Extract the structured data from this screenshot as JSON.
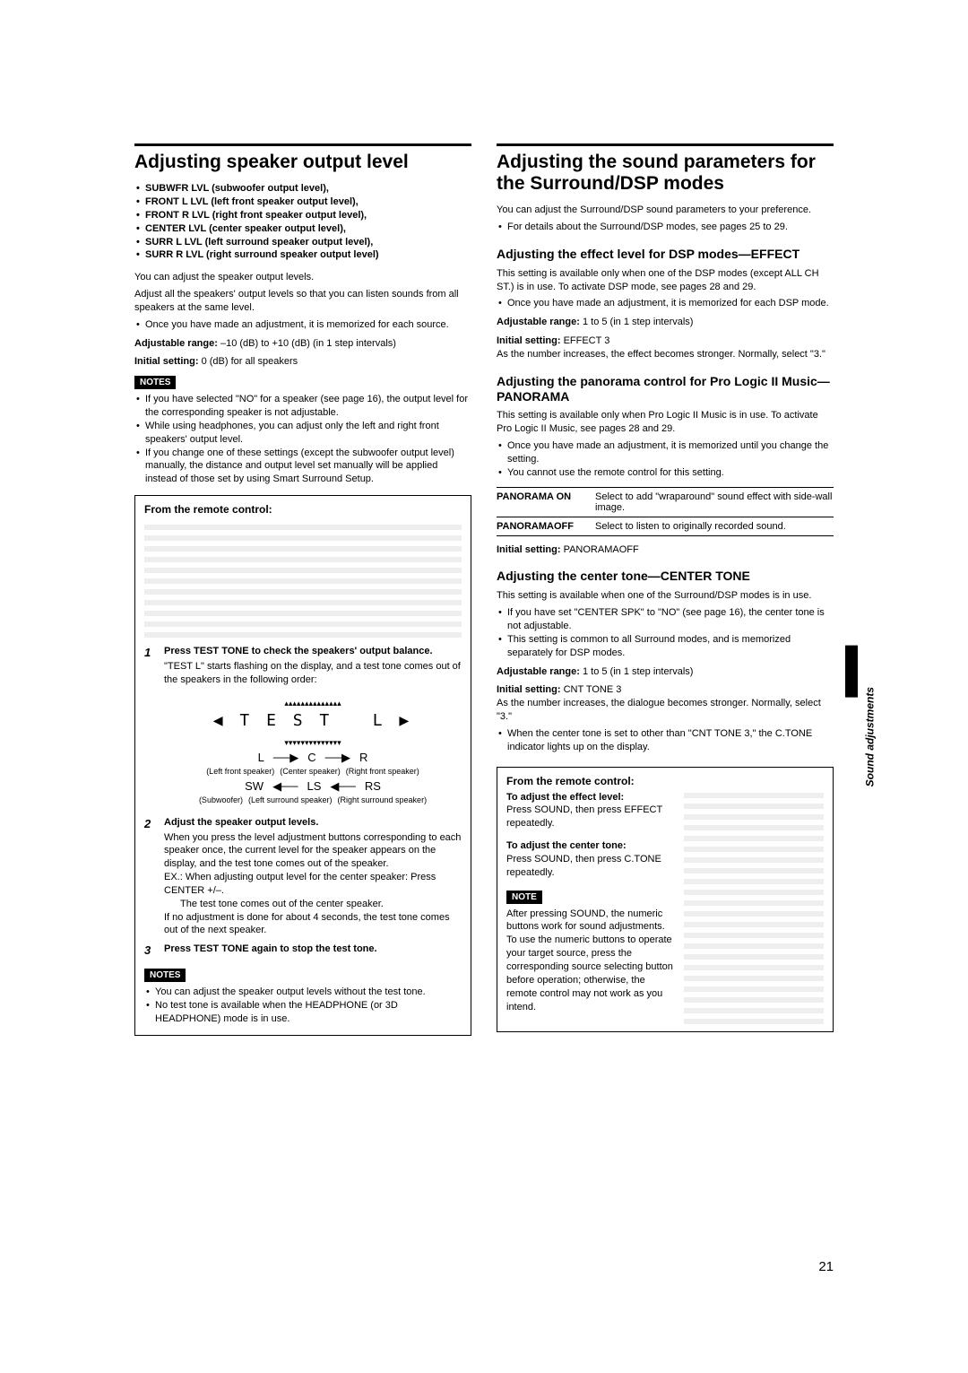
{
  "pageNumber": "21",
  "sideTab": "Sound adjustments",
  "left": {
    "title": "Adjusting speaker output level",
    "levelList": [
      "SUBWFR LVL (subwoofer output level),",
      "FRONT L LVL (left front speaker output level),",
      "FRONT R LVL (right front speaker output level),",
      "CENTER LVL (center speaker output level),",
      "SURR L LVL (left surround speaker output level),",
      "SURR R LVL (right surround speaker output level)"
    ],
    "intro1": "You can adjust the speaker output levels.",
    "intro2": "Adjust all the speakers' output levels so that you can listen sounds from all speakers at the same level.",
    "introBullet": "Once you have made an adjustment, it is memorized for each source.",
    "rangeLabel": "Adjustable range:",
    "rangeValue": "–10 (dB) to +10 (dB) (in 1 step intervals)",
    "initLabel": "Initial setting:",
    "initValue": "0 (dB) for all speakers",
    "notesBadge": "NOTES",
    "notes1": [
      "If you have selected \"NO\" for a speaker (see page 16), the output level for the corresponding speaker is not adjustable.",
      "While using headphones, you can adjust only the left and right front speakers' output level.",
      "If you change one of these settings (except the subwoofer output level) manually, the distance and output level set manually will be applied instead of those set by using Smart Surround Setup."
    ],
    "remoteHeading": "From the remote control:",
    "step1Head": "Press TEST TONE to check the speakers' output balance.",
    "step1Body": "\"TEST L\" starts flashing on the display, and a test tone comes out of the speakers in the following order:",
    "diagram": {
      "segText": "▯▯▯▯▯▯▯▯▯▯▯▯▯▯\n◀ T E S T   L ▶\n▿▿▿▿▿▿▿▿▿▿▿▿▿▿",
      "row1": {
        "L": "L",
        "C": "C",
        "R": "R"
      },
      "row1sub": {
        "L": "(Left front speaker)",
        "C": "(Center speaker)",
        "R": "(Right front speaker)"
      },
      "row2": {
        "SW": "SW",
        "LS": "LS",
        "RS": "RS"
      },
      "row2sub": {
        "SW": "(Subwoofer)",
        "LS": "(Left surround speaker)",
        "RS": "(Right surround speaker)"
      }
    },
    "step2Head": "Adjust the speaker output levels.",
    "step2Body1": "When you press the level adjustment buttons corresponding to each speaker once, the current level for the speaker appears on the display, and the test tone comes out of the speaker.",
    "step2Body2": "EX.: When adjusting output level for the center speaker: Press CENTER +/–.",
    "step2Body3": "The test tone comes out of the center speaker.",
    "step2Body4": "If no adjustment is done for about 4 seconds, the test tone comes out of the next speaker.",
    "step3Head": "Press TEST TONE again to stop the test tone.",
    "notes2": [
      "You can adjust the speaker output levels without the test tone.",
      "No test tone is available when the HEADPHONE (or 3D HEADPHONE) mode is in use."
    ]
  },
  "right": {
    "title": "Adjusting the sound parameters for the Surround/DSP modes",
    "intro1": "You can adjust the Surround/DSP sound parameters to your preference.",
    "introBullet": "For details about the Surround/DSP modes, see pages 25 to 29.",
    "effect": {
      "heading": "Adjusting the effect level for DSP modes—EFFECT",
      "p1": "This setting is available only when one of the DSP modes (except ALL CH ST.) is in use. To activate DSP mode, see pages 28 and 29.",
      "b1": "Once you have made an adjustment, it is memorized for each DSP mode.",
      "rangeLabel": "Adjustable range:",
      "rangeValue": "1 to 5 (in 1 step intervals)",
      "initLabel": "Initial setting:",
      "initValue": "EFFECT 3",
      "p2": "As the number increases, the effect becomes stronger. Normally, select \"3.\""
    },
    "panorama": {
      "heading": "Adjusting the panorama control for Pro Logic II Music—PANORAMA",
      "p1": "This setting is available only when Pro Logic II Music is in use. To activate Pro Logic II Music, see pages 28 and 29.",
      "b1": "Once you have made an adjustment, it is memorized until you change the setting.",
      "b2": "You cannot use the remote control for this setting.",
      "onK": "PANORAMA ON",
      "onV": "Select to add \"wraparound\" sound effect with side-wall image.",
      "offK": "PANORAMAOFF",
      "offV": "Select to listen to originally recorded sound.",
      "initLabel": "Initial setting:",
      "initValue": "PANORAMAOFF"
    },
    "center": {
      "heading": "Adjusting the center tone—CENTER TONE",
      "p1": "This setting is available when one of the Surround/DSP modes is in use.",
      "b1": "If you have set \"CENTER SPK\" to \"NO\" (see page 16), the center tone is not adjustable.",
      "b2": "This setting is common to all Surround modes, and is memorized separately for DSP modes.",
      "rangeLabel": "Adjustable range:",
      "rangeValue": "1 to 5 (in 1 step intervals)",
      "initLabel": "Initial setting:",
      "initValue": "CNT TONE 3",
      "p2": "As the number increases, the dialogue becomes stronger. Normally, select \"3.\"",
      "b3": "When the center tone is set to other than \"CNT TONE 3,\" the C.TONE indicator lights up on the display."
    },
    "remote": {
      "heading": "From the remote control:",
      "effHead": "To adjust the effect level:",
      "effBody": "Press SOUND, then press EFFECT repeatedly.",
      "ctHead": "To adjust the center tone:",
      "ctBody": "Press SOUND, then press C.TONE repeatedly.",
      "noteBadge": "NOTE",
      "noteBody": "After pressing SOUND, the numeric buttons work for sound adjustments. To use the numeric buttons to operate your target source, press the corresponding source selecting button before operation; otherwise, the remote control may not work as you intend."
    }
  }
}
